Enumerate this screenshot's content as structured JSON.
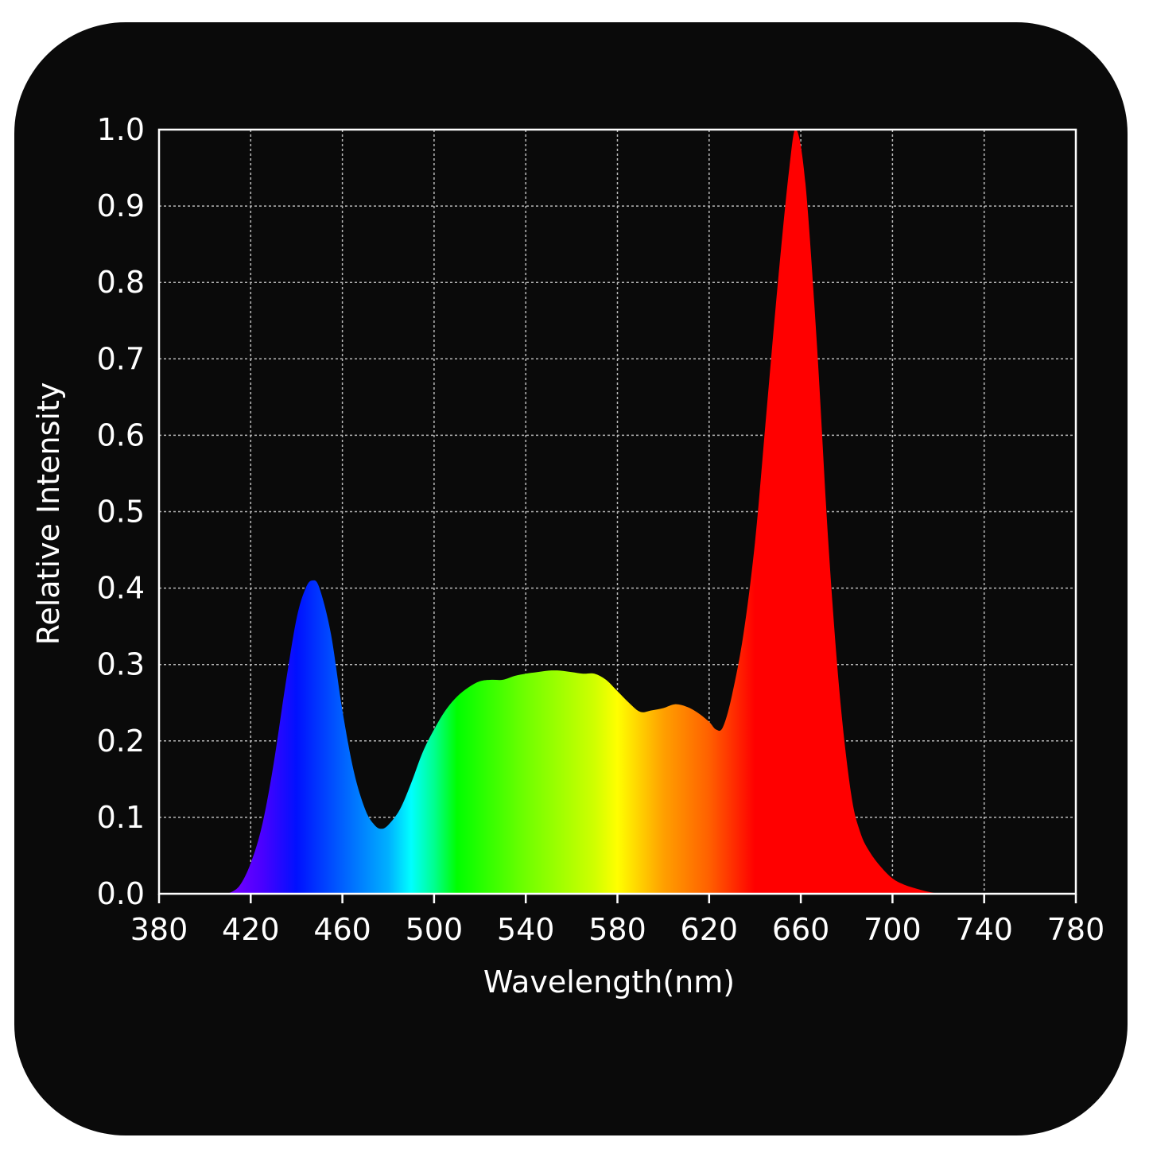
{
  "chart_data": {
    "type": "area",
    "title": "",
    "xlabel": "Wavelength(nm)",
    "ylabel": "Relative Intensity",
    "xlim": [
      380,
      780
    ],
    "ylim": [
      0.0,
      1.0
    ],
    "grid": true,
    "legend": null,
    "x_ticks": [
      "380",
      "420",
      "460",
      "500",
      "540",
      "580",
      "620",
      "660",
      "700",
      "740",
      "780"
    ],
    "y_ticks": [
      "0.0",
      "0.1",
      "0.2",
      "0.3",
      "0.4",
      "0.5",
      "0.6",
      "0.7",
      "0.8",
      "0.9",
      "1.0"
    ],
    "x": [
      410,
      415,
      420,
      425,
      430,
      435,
      440,
      444,
      447,
      450,
      455,
      460,
      465,
      470,
      474,
      477,
      480,
      485,
      490,
      495,
      500,
      505,
      510,
      515,
      520,
      525,
      530,
      535,
      540,
      545,
      550,
      555,
      560,
      565,
      570,
      575,
      580,
      585,
      590,
      595,
      600,
      605,
      610,
      615,
      620,
      623,
      626,
      630,
      635,
      640,
      645,
      650,
      655,
      658,
      662,
      667,
      672,
      677,
      682,
      686,
      690,
      695,
      700,
      705,
      710,
      715,
      720
    ],
    "values": [
      0.0,
      0.01,
      0.04,
      0.09,
      0.17,
      0.27,
      0.36,
      0.4,
      0.41,
      0.4,
      0.34,
      0.24,
      0.16,
      0.11,
      0.09,
      0.085,
      0.09,
      0.11,
      0.145,
      0.185,
      0.215,
      0.24,
      0.258,
      0.27,
      0.278,
      0.28,
      0.28,
      0.285,
      0.288,
      0.29,
      0.292,
      0.292,
      0.29,
      0.288,
      0.288,
      0.28,
      0.265,
      0.25,
      0.238,
      0.24,
      0.243,
      0.248,
      0.245,
      0.237,
      0.225,
      0.215,
      0.218,
      0.26,
      0.34,
      0.46,
      0.63,
      0.8,
      0.95,
      1.0,
      0.93,
      0.72,
      0.46,
      0.26,
      0.13,
      0.08,
      0.055,
      0.035,
      0.02,
      0.012,
      0.007,
      0.003,
      0.0
    ],
    "fill": "visible-spectrum gradient (violet→blue→cyan→green→yellow→orange→red)"
  },
  "labels": {
    "xlabel": "Wavelength(nm)",
    "ylabel": "Relative Intensity"
  },
  "colors": {
    "background": "#0a0a0a",
    "axis": "#ffffff",
    "grid": "#bbbbbb",
    "spectrum_stops": [
      {
        "nm": 410,
        "color": "#7a00ff"
      },
      {
        "nm": 425,
        "color": "#4a00ff"
      },
      {
        "nm": 440,
        "color": "#0010ff"
      },
      {
        "nm": 460,
        "color": "#0060ff"
      },
      {
        "nm": 480,
        "color": "#00b0ff"
      },
      {
        "nm": 490,
        "color": "#00ffff"
      },
      {
        "nm": 500,
        "color": "#00ff90"
      },
      {
        "nm": 510,
        "color": "#00ff00"
      },
      {
        "nm": 540,
        "color": "#70ff00"
      },
      {
        "nm": 570,
        "color": "#d0ff00"
      },
      {
        "nm": 580,
        "color": "#ffff00"
      },
      {
        "nm": 600,
        "color": "#ffa000"
      },
      {
        "nm": 620,
        "color": "#ff6000"
      },
      {
        "nm": 640,
        "color": "#ff0000"
      },
      {
        "nm": 720,
        "color": "#ff0000"
      }
    ]
  }
}
